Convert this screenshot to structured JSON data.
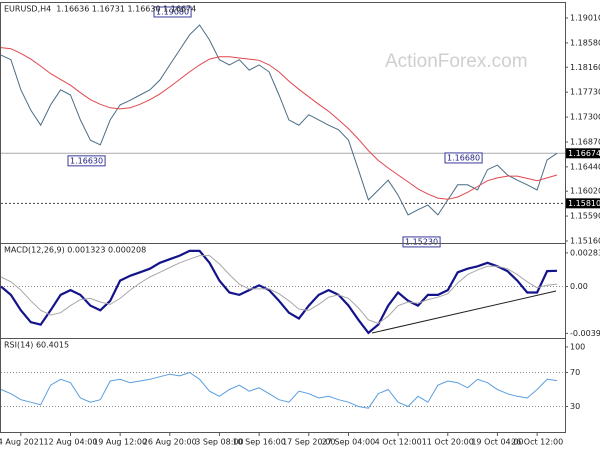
{
  "chart_data": [
    {
      "type": "line",
      "title": "EURUSD,H4",
      "quote": "1.16636 1.16731 1.16630 1.16674",
      "watermark": "ActionForex.com",
      "categories": [
        null,
        null,
        "4 Aug 2021",
        null,
        null,
        null,
        null,
        "12 Aug 04:00",
        null,
        null,
        null,
        null,
        "19 Aug 12:00",
        null,
        null,
        null,
        null,
        "26 Aug 20:00",
        null,
        null,
        null,
        null,
        "3 Sep 08:00",
        null,
        null,
        null,
        "10 Sep 16:00",
        null,
        null,
        null,
        null,
        "17 Sep 20:00",
        null,
        null,
        null,
        "27 Sep 04:00",
        null,
        null,
        null,
        null,
        "4 Oct 12:00",
        null,
        null,
        null,
        null,
        "11 Oct 20:00",
        null,
        null,
        null,
        null,
        "19 Oct 04:00",
        null,
        null,
        null,
        "26 Oct 12:00",
        null,
        null
      ],
      "series": [
        {
          "name": "EURUSD",
          "color": "#4a6d86",
          "values": [
            1.1837,
            1.1829,
            1.1777,
            1.1742,
            1.1716,
            1.1751,
            1.1777,
            1.1768,
            1.1725,
            1.169,
            1.1682,
            1.1725,
            1.1751,
            1.1759,
            1.1768,
            1.1777,
            1.1794,
            1.182,
            1.1846,
            1.1872,
            1.1889,
            1.1863,
            1.1829,
            1.182,
            1.1829,
            1.1811,
            1.182,
            1.1808,
            1.1768,
            1.1725,
            1.1716,
            1.1734,
            1.1725,
            1.1716,
            1.1708,
            1.169,
            1.1639,
            1.1587,
            1.1604,
            1.1621,
            1.1595,
            1.1561,
            1.157,
            1.1578,
            1.1561,
            1.1587,
            1.1613,
            1.1613,
            1.1604,
            1.1639,
            1.1647,
            1.163,
            1.1621,
            1.1613,
            1.1604,
            1.1656,
            1.16674
          ]
        },
        {
          "name": "MA",
          "color": "#e0474c",
          "values": [
            1.185,
            1.1848,
            1.184,
            1.183,
            1.1818,
            1.1805,
            1.1795,
            1.1785,
            1.1772,
            1.176,
            1.1752,
            1.1746,
            1.1744,
            1.1746,
            1.1752,
            1.176,
            1.177,
            1.1782,
            1.1795,
            1.1808,
            1.182,
            1.183,
            1.1834,
            1.1834,
            1.1832,
            1.183,
            1.1828,
            1.182,
            1.1808,
            1.1792,
            1.1778,
            1.1765,
            1.1752,
            1.174,
            1.1725,
            1.171,
            1.1692,
            1.1672,
            1.1655,
            1.1642,
            1.163,
            1.1618,
            1.1606,
            1.1597,
            1.159,
            1.1588,
            1.1592,
            1.16,
            1.161,
            1.162,
            1.1625,
            1.1628,
            1.1628,
            1.1624,
            1.162,
            1.1625,
            1.163
          ]
        }
      ],
      "ylim": [
        1.15125,
        1.19235
      ],
      "yticks": [
        {
          "value": 1.1901,
          "label": "1.19010"
        },
        {
          "value": 1.1858,
          "label": "1.18580"
        },
        {
          "value": 1.1816,
          "label": "1.18160"
        },
        {
          "value": 1.1773,
          "label": "1.17730"
        },
        {
          "value": 1.173,
          "label": "1.17300"
        },
        {
          "value": 1.1687,
          "label": "1.16870"
        },
        {
          "value": 1.1644,
          "label": "1.16440"
        },
        {
          "value": 1.1602,
          "label": "1.16020"
        },
        {
          "value": 1.1559,
          "label": "1.15590"
        },
        {
          "value": 1.1516,
          "label": "1.15160"
        }
      ],
      "hlines": [
        {
          "value": 1.16674,
          "label": "1.16674"
        },
        {
          "value": 1.1581,
          "label": "1.15810"
        }
      ],
      "annotations": [
        {
          "value": 1.1908,
          "label": "1.19080"
        },
        {
          "value": 1.1663,
          "label": "1.16630"
        },
        {
          "value": 1.1668,
          "label": "1.16680"
        },
        {
          "value": 1.1523,
          "label": "1.15230"
        }
      ]
    },
    {
      "type": "line",
      "title": "MACD(12,26,9) 0.001323 0.000208",
      "series": [
        {
          "name": "MACD",
          "color": "#14148a",
          "values": [
            0,
            -0.0007,
            -0.002,
            -0.003,
            -0.0032,
            -0.002,
            -0.0007,
            -0.0003,
            -0.0007,
            -0.0016,
            -0.002,
            -0.0012,
            0.0005,
            0.0009,
            0.0012,
            0.0015,
            0.002,
            0.0023,
            0.0026,
            0.003,
            0.003,
            0.002,
            0.0005,
            -0.0005,
            -0.0007,
            -0.0003,
            0.0001,
            -0.0003,
            -0.0012,
            -0.0022,
            -0.0027,
            -0.0016,
            -0.0007,
            -0.0003,
            -0.0007,
            -0.0016,
            -0.0028,
            -0.0039,
            -0.0032,
            -0.0016,
            -0.0005,
            -0.0012,
            -0.0016,
            -0.0007,
            -0.0007,
            -0.0003,
            0.0012,
            0.0015,
            0.0017,
            0.002,
            0.0017,
            0.0013,
            0.0005,
            -0.0005,
            -0.0005,
            0.0013,
            0.001323
          ]
        },
        {
          "name": "Signal",
          "color": "#a8a8a8",
          "values": [
            0.0008,
            0.0004,
            -0.0003,
            -0.0012,
            -0.002,
            -0.0024,
            -0.0022,
            -0.0016,
            -0.0011,
            -0.001,
            -0.0013,
            -0.0015,
            -0.001,
            -0.0003,
            0.0003,
            0.0008,
            0.0012,
            0.0016,
            0.002,
            0.0023,
            0.0026,
            0.0026,
            0.0019,
            0.001,
            0.0002,
            -0.0002,
            -0.0002,
            -0.0002,
            -0.0006,
            -0.0012,
            -0.0019,
            -0.002,
            -0.0015,
            -0.0009,
            -0.0007,
            -0.001,
            -0.0018,
            -0.0028,
            -0.0031,
            -0.0025,
            -0.0016,
            -0.0013,
            -0.0014,
            -0.0011,
            -0.0009,
            -0.0006,
            0.0003,
            0.001,
            0.0014,
            0.0017,
            0.0017,
            0.0015,
            0.001,
            0.0004,
            -0.0001,
            0.0001,
            0.000208
          ]
        }
      ],
      "ylim": [
        -0.00433,
        0.00341
      ],
      "yticks": [
        0.00283,
        {
          "value": 0,
          "label": "0.00"
        },
        -0.003939
      ],
      "levels": [
        0
      ]
    },
    {
      "type": "line",
      "title": "RSI(14) 60.4015",
      "series": [
        {
          "name": "RSI",
          "color": "#5a9ee0",
          "values": [
            50,
            45,
            38,
            35,
            32,
            55,
            62,
            58,
            40,
            35,
            38,
            60,
            62,
            58,
            60,
            62,
            65,
            68,
            66,
            70,
            62,
            48,
            42,
            50,
            55,
            48,
            52,
            45,
            38,
            35,
            48,
            45,
            40,
            42,
            38,
            35,
            30,
            28,
            45,
            50,
            35,
            30,
            42,
            35,
            55,
            60,
            58,
            52,
            62,
            58,
            50,
            45,
            42,
            40,
            50,
            62,
            60.4015
          ]
        }
      ],
      "ylim": [
        0,
        107
      ],
      "yticks": [
        100,
        70,
        30
      ],
      "levels": [
        70,
        30
      ]
    }
  ]
}
